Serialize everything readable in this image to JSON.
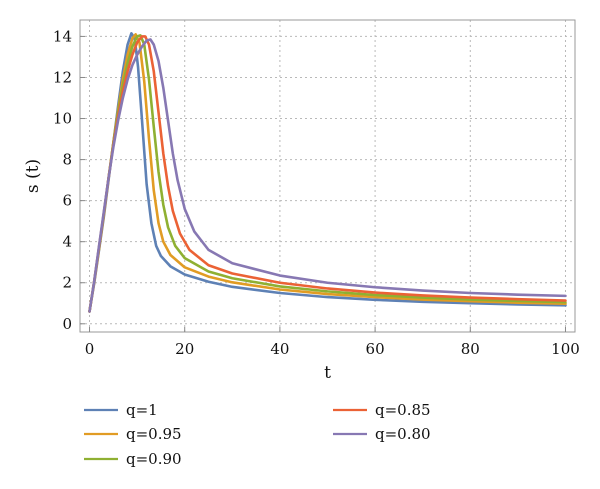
{
  "chart_data": {
    "type": "line",
    "title": "",
    "xlabel": "t",
    "ylabel": "s (t)",
    "xlim": [
      -2,
      102
    ],
    "ylim": [
      -0.4,
      14.8
    ],
    "xticks": [
      0,
      20,
      40,
      60,
      80,
      100
    ],
    "yticks": [
      0,
      2,
      4,
      6,
      8,
      10,
      12,
      14
    ],
    "grid": true,
    "legend_position": "bottom",
    "series": [
      {
        "name": "q=1",
        "color": "#5e81b5",
        "points": [
          [
            0,
            0.6
          ],
          [
            1,
            2.0
          ],
          [
            2,
            3.6
          ],
          [
            3,
            5.2
          ],
          [
            4,
            7.0
          ],
          [
            5,
            8.8
          ],
          [
            6,
            10.6
          ],
          [
            7,
            12.3
          ],
          [
            8,
            13.6
          ],
          [
            8.8,
            14.15
          ],
          [
            9.5,
            13.9
          ],
          [
            10.2,
            12.5
          ],
          [
            11,
            10.0
          ],
          [
            12,
            6.8
          ],
          [
            13,
            4.9
          ],
          [
            14,
            3.8
          ],
          [
            15,
            3.3
          ],
          [
            17,
            2.8
          ],
          [
            20,
            2.4
          ],
          [
            25,
            2.05
          ],
          [
            30,
            1.8
          ],
          [
            40,
            1.5
          ],
          [
            50,
            1.3
          ],
          [
            60,
            1.17
          ],
          [
            70,
            1.07
          ],
          [
            80,
            1.0
          ],
          [
            90,
            0.94
          ],
          [
            100,
            0.9
          ]
        ]
      },
      {
        "name": "q=0.95",
        "color": "#e19c24",
        "points": [
          [
            0,
            0.6
          ],
          [
            1,
            2.05
          ],
          [
            2,
            3.65
          ],
          [
            3,
            5.3
          ],
          [
            4,
            7.1
          ],
          [
            5,
            8.8
          ],
          [
            6,
            10.4
          ],
          [
            7,
            11.9
          ],
          [
            8,
            13.1
          ],
          [
            9,
            13.9
          ],
          [
            9.7,
            14.1
          ],
          [
            10.5,
            13.7
          ],
          [
            11.5,
            11.8
          ],
          [
            12.5,
            9.0
          ],
          [
            13.5,
            6.5
          ],
          [
            14.5,
            4.9
          ],
          [
            15.5,
            4.0
          ],
          [
            17,
            3.35
          ],
          [
            20,
            2.75
          ],
          [
            25,
            2.3
          ],
          [
            30,
            2.02
          ],
          [
            40,
            1.67
          ],
          [
            50,
            1.45
          ],
          [
            60,
            1.3
          ],
          [
            70,
            1.18
          ],
          [
            80,
            1.1
          ],
          [
            90,
            1.03
          ],
          [
            100,
            0.98
          ]
        ]
      },
      {
        "name": "q=0.90",
        "color": "#8fb032",
        "points": [
          [
            0,
            0.6
          ],
          [
            1,
            2.1
          ],
          [
            2,
            3.7
          ],
          [
            3,
            5.35
          ],
          [
            4,
            7.1
          ],
          [
            5,
            8.8
          ],
          [
            6,
            10.3
          ],
          [
            7,
            11.6
          ],
          [
            8,
            12.7
          ],
          [
            9,
            13.5
          ],
          [
            10,
            14.0
          ],
          [
            10.7,
            14.05
          ],
          [
            11.5,
            13.6
          ],
          [
            12.5,
            11.9
          ],
          [
            13.5,
            9.6
          ],
          [
            14.5,
            7.4
          ],
          [
            15.5,
            5.8
          ],
          [
            16.5,
            4.7
          ],
          [
            18,
            3.8
          ],
          [
            20,
            3.2
          ],
          [
            25,
            2.55
          ],
          [
            30,
            2.22
          ],
          [
            40,
            1.82
          ],
          [
            50,
            1.58
          ],
          [
            60,
            1.4
          ],
          [
            70,
            1.28
          ],
          [
            80,
            1.18
          ],
          [
            90,
            1.11
          ],
          [
            100,
            1.05
          ]
        ]
      },
      {
        "name": "q=0.85",
        "color": "#eb6235",
        "points": [
          [
            0,
            0.6
          ],
          [
            1,
            2.1
          ],
          [
            2,
            3.75
          ],
          [
            3,
            5.4
          ],
          [
            4,
            7.1
          ],
          [
            5,
            8.7
          ],
          [
            6,
            10.1
          ],
          [
            7,
            11.3
          ],
          [
            8,
            12.3
          ],
          [
            9,
            13.1
          ],
          [
            10,
            13.7
          ],
          [
            11,
            14.0
          ],
          [
            11.7,
            14.0
          ],
          [
            12.5,
            13.6
          ],
          [
            13.5,
            12.3
          ],
          [
            14.5,
            10.3
          ],
          [
            15.5,
            8.3
          ],
          [
            16.5,
            6.7
          ],
          [
            17.5,
            5.5
          ],
          [
            19,
            4.4
          ],
          [
            21,
            3.6
          ],
          [
            25,
            2.85
          ],
          [
            30,
            2.45
          ],
          [
            40,
            2.0
          ],
          [
            50,
            1.72
          ],
          [
            60,
            1.52
          ],
          [
            70,
            1.38
          ],
          [
            80,
            1.28
          ],
          [
            90,
            1.2
          ],
          [
            100,
            1.13
          ]
        ]
      },
      {
        "name": "q=0.80",
        "color": "#8778b3",
        "points": [
          [
            0,
            0.6
          ],
          [
            1,
            2.1
          ],
          [
            2,
            3.8
          ],
          [
            3,
            5.45
          ],
          [
            4,
            7.1
          ],
          [
            5,
            8.6
          ],
          [
            6,
            9.9
          ],
          [
            7,
            11.0
          ],
          [
            8,
            11.9
          ],
          [
            9,
            12.6
          ],
          [
            10,
            13.1
          ],
          [
            11,
            13.5
          ],
          [
            12,
            13.8
          ],
          [
            12.8,
            13.85
          ],
          [
            13.5,
            13.6
          ],
          [
            14.5,
            12.8
          ],
          [
            15.5,
            11.5
          ],
          [
            16.5,
            9.9
          ],
          [
            17.5,
            8.3
          ],
          [
            18.5,
            7.0
          ],
          [
            20,
            5.6
          ],
          [
            22,
            4.5
          ],
          [
            25,
            3.6
          ],
          [
            30,
            2.95
          ],
          [
            40,
            2.35
          ],
          [
            50,
            2.0
          ],
          [
            60,
            1.78
          ],
          [
            70,
            1.62
          ],
          [
            80,
            1.5
          ],
          [
            90,
            1.42
          ],
          [
            100,
            1.36
          ]
        ]
      }
    ]
  }
}
